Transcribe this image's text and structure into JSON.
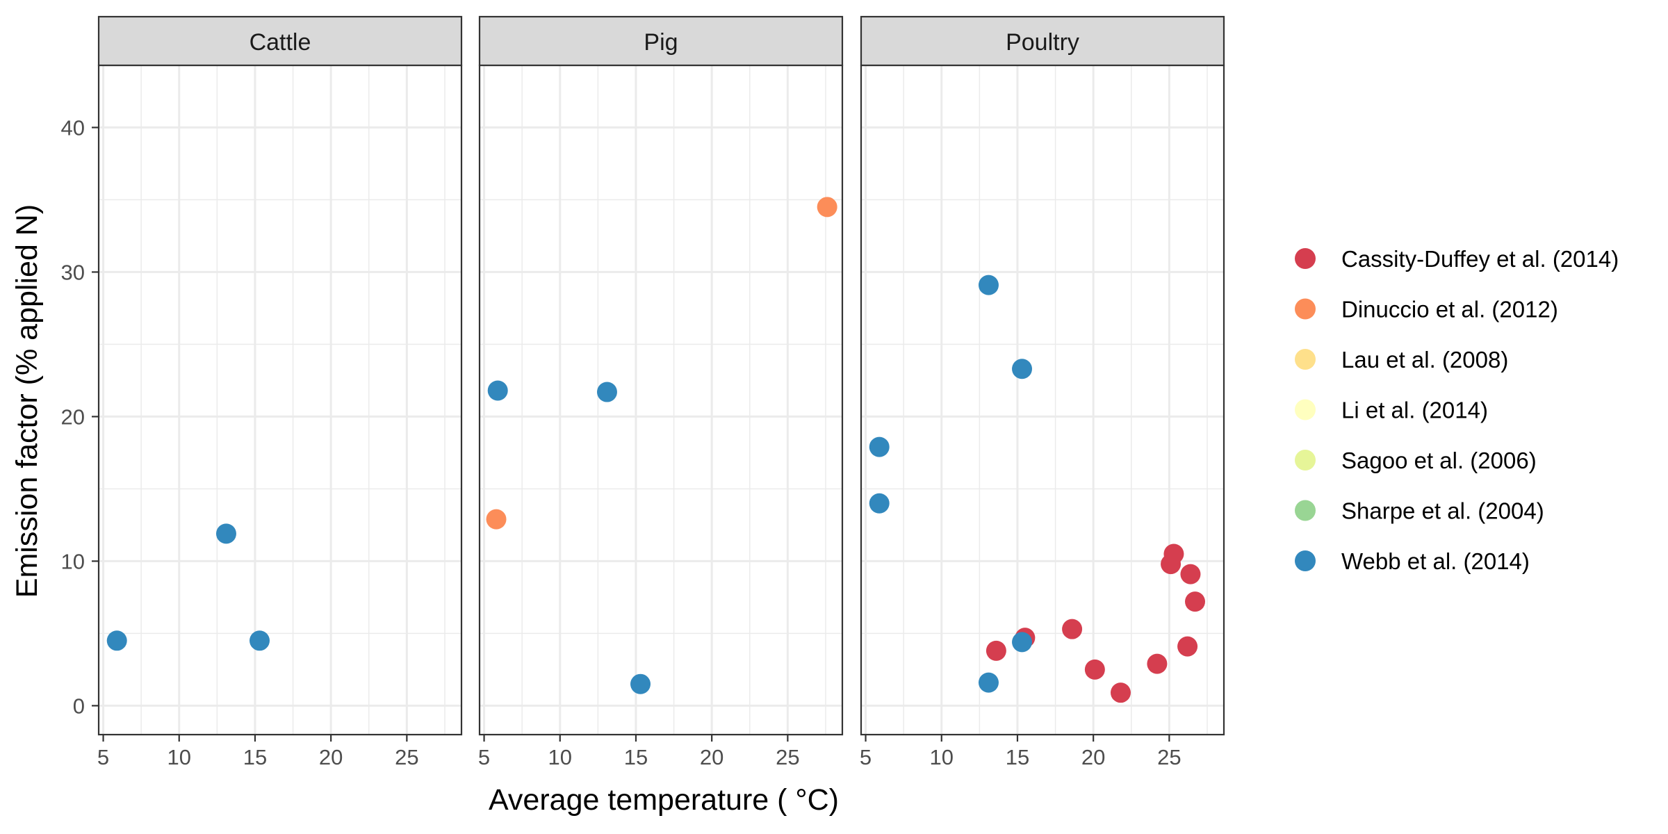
{
  "chart_data": {
    "type": "scatter",
    "xlabel": "Average temperature ( °C)",
    "ylabel": "Emission factor (% applied N)",
    "xlim": [
      4.7,
      28.6
    ],
    "ylim": [
      -2.0,
      44.3
    ],
    "x_ticks": [
      5,
      10,
      15,
      20,
      25
    ],
    "y_ticks": [
      0,
      10,
      20,
      30,
      40
    ],
    "grid": true,
    "legend_position": "right",
    "legend": [
      {
        "name": "Cassity-Duffey et al. (2014)",
        "color": "#d53e4f"
      },
      {
        "name": "Dinuccio et al. (2012)",
        "color": "#fc8d59"
      },
      {
        "name": "Lau et al. (2008)",
        "color": "#fee08b"
      },
      {
        "name": "Li et al. (2014)",
        "color": "#ffffbf"
      },
      {
        "name": "Sagoo et al. (2006)",
        "color": "#e6f598"
      },
      {
        "name": "Sharpe et al. (2004)",
        "color": "#99d594"
      },
      {
        "name": "Webb et al. (2014)",
        "color": "#3288bd"
      }
    ],
    "panels": [
      {
        "title": "Cattle",
        "points": [
          {
            "x": 5.9,
            "y": 4.5,
            "series": "Webb et al. (2014)"
          },
          {
            "x": 13.1,
            "y": 11.9,
            "series": "Webb et al. (2014)"
          },
          {
            "x": 15.3,
            "y": 4.5,
            "series": "Webb et al. (2014)"
          }
        ]
      },
      {
        "title": "Pig",
        "points": [
          {
            "x": 5.8,
            "y": 12.9,
            "series": "Dinuccio et al. (2012)"
          },
          {
            "x": 27.6,
            "y": 34.5,
            "series": "Dinuccio et al. (2012)"
          },
          {
            "x": 5.9,
            "y": 21.8,
            "series": "Webb et al. (2014)"
          },
          {
            "x": 13.1,
            "y": 21.7,
            "series": "Webb et al. (2014)"
          },
          {
            "x": 15.3,
            "y": 1.5,
            "series": "Webb et al. (2014)"
          }
        ]
      },
      {
        "title": "Poultry",
        "points": [
          {
            "x": 13.6,
            "y": 3.8,
            "series": "Cassity-Duffey et al. (2014)"
          },
          {
            "x": 15.5,
            "y": 4.7,
            "series": "Cassity-Duffey et al. (2014)"
          },
          {
            "x": 18.6,
            "y": 5.3,
            "series": "Cassity-Duffey et al. (2014)"
          },
          {
            "x": 20.1,
            "y": 2.5,
            "series": "Cassity-Duffey et al. (2014)"
          },
          {
            "x": 21.8,
            "y": 0.9,
            "series": "Cassity-Duffey et al. (2014)"
          },
          {
            "x": 24.2,
            "y": 2.9,
            "series": "Cassity-Duffey et al. (2014)"
          },
          {
            "x": 25.1,
            "y": 9.8,
            "series": "Cassity-Duffey et al. (2014)"
          },
          {
            "x": 25.3,
            "y": 10.5,
            "series": "Cassity-Duffey et al. (2014)"
          },
          {
            "x": 26.2,
            "y": 4.1,
            "series": "Cassity-Duffey et al. (2014)"
          },
          {
            "x": 26.4,
            "y": 9.1,
            "series": "Cassity-Duffey et al. (2014)"
          },
          {
            "x": 26.7,
            "y": 7.2,
            "series": "Cassity-Duffey et al. (2014)"
          },
          {
            "x": 5.9,
            "y": 17.9,
            "series": "Webb et al. (2014)"
          },
          {
            "x": 5.9,
            "y": 14.0,
            "series": "Webb et al. (2014)"
          },
          {
            "x": 13.1,
            "y": 29.1,
            "series": "Webb et al. (2014)"
          },
          {
            "x": 13.1,
            "y": 1.6,
            "series": "Webb et al. (2014)"
          },
          {
            "x": 15.3,
            "y": 23.3,
            "series": "Webb et al. (2014)"
          },
          {
            "x": 15.3,
            "y": 4.4,
            "series": "Webb et al. (2014)"
          }
        ]
      }
    ]
  }
}
